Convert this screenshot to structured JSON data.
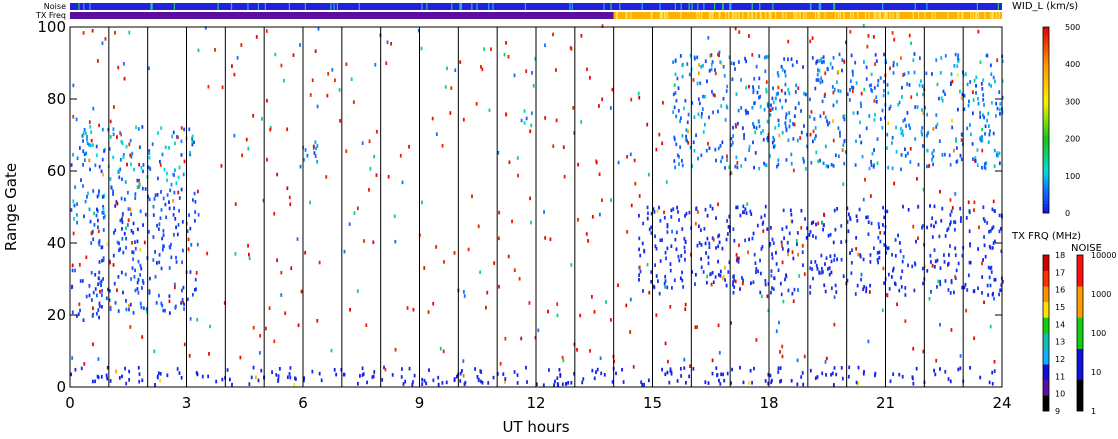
{
  "chart_data": {
    "type": "heatmap",
    "xlabel": "UT hours",
    "ylabel": "Range Gate",
    "xlim": [
      0,
      24
    ],
    "ylim": [
      0,
      100
    ],
    "x_ticks": [
      "0",
      "3",
      "6",
      "9",
      "12",
      "15",
      "18",
      "21",
      "24"
    ],
    "y_ticks": [
      "0",
      "20",
      "40",
      "60",
      "80",
      "100"
    ],
    "hour_gridlines": true,
    "top_strips": [
      {
        "label": "Noise",
        "segments": [
          {
            "from": 0,
            "to": 24,
            "color": "#2222dd"
          }
        ]
      },
      {
        "label": "TX Freq",
        "segments": [
          {
            "from": 0,
            "to": 14,
            "color": "#5a0f9e"
          },
          {
            "from": 14,
            "to": 24,
            "color": "#ffb000"
          }
        ]
      }
    ],
    "colorbars": {
      "width": {
        "title": "WID_L (km/s)",
        "ticks": [
          "0",
          "100",
          "200",
          "300",
          "400",
          "500"
        ],
        "range": [
          0,
          500
        ]
      },
      "tx_freq": {
        "title": "TX FRQ (MHz)",
        "ticks": [
          "9",
          "10",
          "11",
          "12",
          "13",
          "14",
          "15",
          "16",
          "17",
          "18"
        ],
        "colors": [
          "#000000",
          "#5a0f9e",
          "#1010dd",
          "#10b0ff",
          "#10c0b0",
          "#10d010",
          "#ffe000",
          "#ff9000",
          "#ff3000",
          "#d00000"
        ]
      },
      "noise": {
        "title": "NOISE",
        "ticks": [
          "1",
          "10",
          "100",
          "1000",
          "10000"
        ],
        "colors": [
          "#000000",
          "#1010dd",
          "#10d010",
          "#ffa000",
          "#ff1010"
        ]
      }
    },
    "series": [
      {
        "ut_start": 0.0,
        "ut_end": 1.0,
        "gate_low": 18,
        "gate_high": 32,
        "width": 30
      },
      {
        "ut_start": 0.0,
        "ut_end": 1.0,
        "gate_low": 45,
        "gate_high": 72,
        "width": 80
      },
      {
        "ut_start": 0.5,
        "ut_end": 3.3,
        "gate_low": 20,
        "gate_high": 55,
        "width": 40
      },
      {
        "ut_start": 1.0,
        "ut_end": 3.2,
        "gate_low": 55,
        "gate_high": 72,
        "width": 90
      },
      {
        "ut_start": 5.9,
        "ut_end": 6.6,
        "gate_low": 60,
        "gate_high": 68,
        "width": 60
      },
      {
        "ut_start": 11.6,
        "ut_end": 11.9,
        "gate_low": 70,
        "gate_high": 77,
        "width": 90
      },
      {
        "ut_start": 14.6,
        "ut_end": 24.0,
        "gate_low": 25,
        "gate_high": 50,
        "width": 20
      },
      {
        "ut_start": 15.5,
        "ut_end": 24.0,
        "gate_low": 60,
        "gate_high": 92,
        "width": 70
      },
      {
        "ut_start": 0.0,
        "ut_end": 24.0,
        "gate_low": 0,
        "gate_high": 5,
        "width": 10
      }
    ]
  }
}
